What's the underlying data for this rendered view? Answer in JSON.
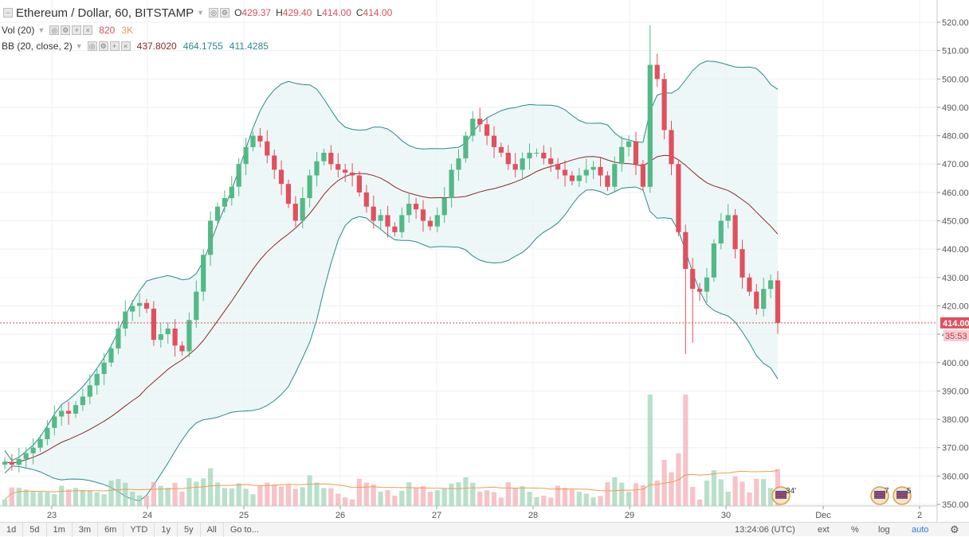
{
  "legend": {
    "title": "Ethereum / Dollar, 60, BITSTAMP",
    "ohlc": {
      "o_label": "O",
      "o": "429.37",
      "h_label": "H",
      "h": "429.40",
      "l_label": "L",
      "l": "414.00",
      "c_label": "C",
      "c": "414.00"
    },
    "vol": {
      "label": "Vol (20)",
      "v1": "820",
      "v2": "3K"
    },
    "bb": {
      "label": "BB (20, close, 2)",
      "basis": "437.8020",
      "upper": "464.1755",
      "lower": "411.4285"
    }
  },
  "price_tags": {
    "last": "414.00",
    "countdown": "35:53"
  },
  "event_markers": [
    {
      "icon": "us-flag-icon",
      "label": "34'"
    },
    {
      "icon": "us-flag-icon",
      "label": "7"
    },
    {
      "icon": "us-flag-icon",
      "label": "5"
    }
  ],
  "bottom_bar": {
    "ranges": [
      "1d",
      "5d",
      "1m",
      "3m",
      "6m",
      "YTD",
      "1y",
      "5y",
      "All"
    ],
    "goto": "Go to...",
    "time": "13:24:06 (UTC)",
    "ext": "ext",
    "pct": "%",
    "log": "log",
    "auto": "auto"
  },
  "colors": {
    "up": "#53b987",
    "down": "#e0505d",
    "bb_band": "#2a8a8a",
    "bb_basis": "#8b2a2a",
    "vol_ma": "#f29b4b",
    "last_price": "#e0505d"
  },
  "chart_data": {
    "type": "candlestick",
    "title": "Ethereum / Dollar, 60, BITSTAMP",
    "y_ticks": [
      350,
      360,
      370,
      380,
      390,
      400,
      410,
      420,
      430,
      440,
      450,
      460,
      470,
      480,
      490,
      500,
      510,
      520
    ],
    "ylim": [
      348,
      522
    ],
    "x_tick_labels": [
      "23",
      "24",
      "25",
      "26",
      "27",
      "28",
      "29",
      "30",
      "Dec",
      "2"
    ],
    "grid": true,
    "last_price": 414.0,
    "candles_approx_closes": [
      365,
      364,
      366,
      368,
      370,
      373,
      377,
      381,
      383,
      382,
      385,
      388,
      392,
      396,
      400,
      405,
      412,
      418,
      420,
      421,
      419,
      408,
      410,
      412,
      406,
      404,
      415,
      425,
      438,
      450,
      455,
      458,
      462,
      470,
      476,
      480,
      478,
      473,
      468,
      463,
      456,
      450,
      458,
      466,
      471,
      474,
      470,
      468,
      467,
      466,
      460,
      455,
      450,
      452,
      448,
      446,
      452,
      456,
      454,
      450,
      448,
      452,
      458,
      468,
      472,
      480,
      486,
      484,
      480,
      476,
      474,
      470,
      468,
      472,
      474,
      474,
      472,
      470,
      468,
      466,
      464,
      466,
      468,
      469,
      466,
      462,
      470,
      476,
      478,
      470,
      462,
      505,
      500,
      482,
      470,
      446,
      433,
      426,
      425,
      430,
      442,
      450,
      452,
      440,
      430,
      425,
      419,
      426,
      429,
      414
    ],
    "volume_series_max_approx": 3000
  }
}
